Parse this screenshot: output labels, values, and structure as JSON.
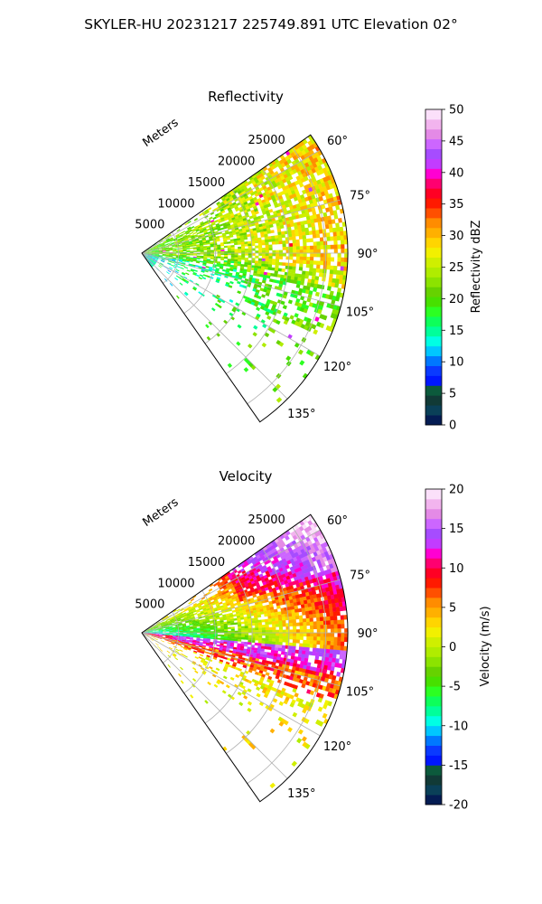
{
  "suptitle": "SKYLER-HU  20231217  225749.891 UTC Elevation 02°",
  "chart_data": [
    {
      "type": "heatmap",
      "subtype": "polar-ppi-sector",
      "title": "Reflectivity",
      "radial_label": "Meters",
      "radial_ticks": [
        "5000",
        "10000",
        "15000",
        "20000",
        "25000"
      ],
      "radial_tick_values": [
        5000,
        10000,
        15000,
        20000,
        25000
      ],
      "rlim": [
        0,
        28000
      ],
      "angle_ticks": [
        "60°",
        "75°",
        "90°",
        "105°",
        "120°",
        "135°"
      ],
      "angle_tick_values": [
        60,
        75,
        90,
        105,
        120,
        135
      ],
      "theta_range": [
        55,
        145
      ],
      "grid": true,
      "colorbar": {
        "label": "Reflectivity dBZ",
        "range": [
          0,
          50
        ],
        "ticks": [
          "0",
          "5",
          "10",
          "15",
          "20",
          "25",
          "30",
          "35",
          "40",
          "45",
          "50"
        ],
        "tick_values": [
          0,
          5,
          10,
          15,
          20,
          25,
          30,
          35,
          40,
          45,
          50
        ],
        "colormap": [
          "#041c53",
          "#0a4058",
          "#113a36",
          "#0c5a3c",
          "#0017ff",
          "#0a3aff",
          "#0078ff",
          "#00c6ff",
          "#00ffe4",
          "#00ff9a",
          "#0dff5a",
          "#2cff22",
          "#47e000",
          "#66d200",
          "#8ce300",
          "#b0ec00",
          "#cfef00",
          "#f2f000",
          "#ffd500",
          "#ffb000",
          "#ff8c00",
          "#ff5000",
          "#ff1a00",
          "#ff0024",
          "#ff0070",
          "#ff00d2",
          "#c23cff",
          "#a64cff",
          "#cc66ff",
          "#e48ae6",
          "#f2b4ee",
          "#fbe0fa"
        ]
      }
    },
    {
      "type": "heatmap",
      "subtype": "polar-ppi-sector",
      "title": "Velocity",
      "radial_label": "Meters",
      "radial_ticks": [
        "5000",
        "10000",
        "15000",
        "20000",
        "25000"
      ],
      "radial_tick_values": [
        5000,
        10000,
        15000,
        20000,
        25000
      ],
      "rlim": [
        0,
        28000
      ],
      "angle_ticks": [
        "60°",
        "75°",
        "90°",
        "105°",
        "120°",
        "135°"
      ],
      "angle_tick_values": [
        60,
        75,
        90,
        105,
        120,
        135
      ],
      "theta_range": [
        55,
        145
      ],
      "grid": true,
      "colorbar": {
        "label": "Velocity (m/s)",
        "range": [
          -20,
          20
        ],
        "ticks": [
          "-20",
          "-15",
          "-10",
          "-5",
          "0",
          "5",
          "10",
          "15",
          "20"
        ],
        "tick_values": [
          -20,
          -15,
          -10,
          -5,
          0,
          5,
          10,
          15,
          20
        ],
        "colormap": [
          "#041c53",
          "#0a4058",
          "#113a36",
          "#0c5a3c",
          "#0017ff",
          "#0a3aff",
          "#0078ff",
          "#00c6ff",
          "#00ffe4",
          "#00ff9a",
          "#0dff5a",
          "#2cff22",
          "#47e000",
          "#66d200",
          "#8ce300",
          "#b0ec00",
          "#cfef00",
          "#f2f000",
          "#ffd500",
          "#ffb000",
          "#ff8c00",
          "#ff5000",
          "#ff1a00",
          "#ff0024",
          "#ff0070",
          "#ff00d2",
          "#c23cff",
          "#a64cff",
          "#cc66ff",
          "#e48ae6",
          "#f2b4ee",
          "#fbe0fa"
        ]
      }
    }
  ]
}
